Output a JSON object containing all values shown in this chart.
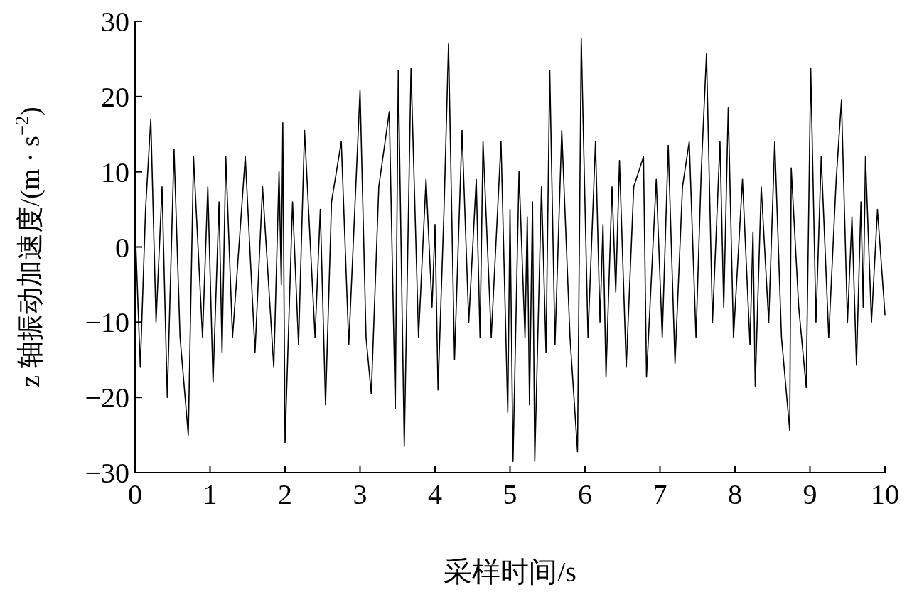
{
  "chart_data": {
    "type": "line",
    "xlabel": "采样时间/s",
    "ylabel": "z 轴振动加速度/(m · s$^{−2}$)",
    "color": "#000000",
    "grid": false,
    "xlim": [
      0,
      10
    ],
    "ylim": [
      -30,
      30
    ],
    "xticks": [
      0,
      1,
      2,
      3,
      4,
      5,
      6,
      7,
      8,
      9,
      10
    ],
    "yticks": [
      -30,
      -20,
      -10,
      0,
      10,
      20,
      30
    ],
    "x": [
      0.0,
      0.07,
      0.14,
      0.21,
      0.28,
      0.36,
      0.43,
      0.52,
      0.6,
      0.71,
      0.78,
      0.9,
      0.97,
      1.04,
      1.12,
      1.16,
      1.21,
      1.3,
      1.47,
      1.6,
      1.7,
      1.85,
      1.92,
      1.95,
      1.97,
      2.0,
      2.1,
      2.18,
      2.26,
      2.4,
      2.47,
      2.54,
      2.62,
      2.75,
      2.85,
      3.0,
      3.08,
      3.15,
      3.25,
      3.39,
      3.47,
      3.51,
      3.59,
      3.68,
      3.78,
      3.88,
      3.96,
      4.0,
      4.04,
      4.12,
      4.18,
      4.26,
      4.36,
      4.45,
      4.55,
      4.6,
      4.64,
      4.75,
      4.88,
      4.97,
      5.0,
      5.04,
      5.12,
      5.2,
      5.23,
      5.26,
      5.3,
      5.33,
      5.42,
      5.48,
      5.53,
      5.6,
      5.69,
      5.8,
      5.9,
      5.95,
      6.04,
      6.14,
      6.2,
      6.24,
      6.28,
      6.36,
      6.41,
      6.46,
      6.55,
      6.65,
      6.78,
      6.82,
      6.95,
      7.03,
      7.11,
      7.2,
      7.3,
      7.39,
      7.48,
      7.55,
      7.62,
      7.7,
      7.8,
      7.85,
      7.91,
      7.98,
      8.1,
      8.2,
      8.24,
      8.27,
      8.35,
      8.45,
      8.53,
      8.62,
      8.73,
      8.75,
      8.85,
      8.95,
      9.01,
      9.08,
      9.15,
      9.25,
      9.35,
      9.42,
      9.5,
      9.56,
      9.62,
      9.68,
      9.71,
      9.74,
      9.82,
      9.9,
      10.0
    ],
    "values": [
      3,
      -16,
      5,
      17,
      -10,
      8,
      -20,
      13,
      -12,
      -25,
      12,
      -12,
      8,
      -18,
      6,
      -14,
      12,
      -12,
      12,
      -14,
      8,
      -16,
      10,
      -5,
      16.5,
      -26,
      6,
      -13,
      15.5,
      -12,
      5,
      -21,
      6,
      14,
      -13,
      20.8,
      -12,
      -19.5,
      8,
      18,
      -21.5,
      23.5,
      -26.5,
      23.8,
      -12,
      9,
      -8,
      3,
      -19,
      5,
      27,
      -15,
      15.5,
      -10,
      9,
      -12,
      14,
      -12,
      14,
      -22,
      5,
      -28.5,
      10,
      -12,
      4,
      -21,
      6,
      -28.5,
      8,
      -14,
      23.5,
      -13,
      15.5,
      -12,
      -27.2,
      27.7,
      -12,
      14,
      -10,
      3,
      -17.3,
      8,
      -6,
      11.5,
      -16,
      8,
      12,
      -17.3,
      9,
      -12,
      13.5,
      -15.5,
      8,
      14,
      -12,
      10,
      25.7,
      -10,
      14,
      -8,
      18.5,
      -12,
      9,
      -13,
      2,
      -18.5,
      8,
      -10,
      14,
      -12,
      -24.4,
      10.5,
      -8,
      -18.7,
      23.8,
      -10,
      12,
      -12,
      9,
      19.5,
      -10,
      4,
      -15.7,
      6,
      -8,
      12,
      -10,
      5,
      -9
    ]
  }
}
